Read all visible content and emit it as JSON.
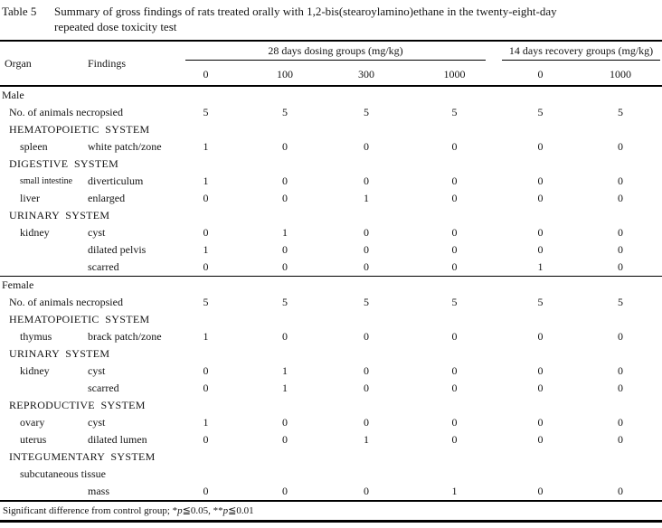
{
  "title": {
    "label": "Table 5",
    "line1": "Summary of gross findings of rats treated orally with 1,2-bis(stearoylamino)ethane in the twenty-eight-day",
    "line2": "repeated dose toxicity test"
  },
  "header": {
    "organ": "Organ",
    "findings": "Findings",
    "group1": "28 days dosing groups (mg/kg)",
    "group1_doses": [
      "0",
      "100",
      "300",
      "1000"
    ],
    "group2": "14 days recovery groups (mg/kg)",
    "group2_doses": [
      "0",
      "1000"
    ]
  },
  "sections": [
    {
      "sex": "Male",
      "rows": [
        {
          "type": "necropsy",
          "label": "No. of animals necropsied",
          "values": [
            "5",
            "5",
            "5",
            "5",
            "5",
            "5"
          ]
        },
        {
          "type": "system",
          "label": "HEMATOPOIETIC  SYSTEM"
        },
        {
          "type": "finding",
          "organ": "spleen",
          "finding": "white patch/zone",
          "values": [
            "1",
            "0",
            "0",
            "0",
            "0",
            "0"
          ]
        },
        {
          "type": "system",
          "label": "DIGESTIVE  SYSTEM"
        },
        {
          "type": "finding",
          "organ": "small intestine",
          "small": true,
          "finding": "diverticulum",
          "values": [
            "1",
            "0",
            "0",
            "0",
            "0",
            "0"
          ]
        },
        {
          "type": "finding",
          "organ": "liver",
          "finding": "enlarged",
          "values": [
            "0",
            "0",
            "1",
            "0",
            "0",
            "0"
          ]
        },
        {
          "type": "system",
          "label": "URINARY  SYSTEM"
        },
        {
          "type": "finding",
          "organ": "kidney",
          "finding": "cyst",
          "values": [
            "0",
            "1",
            "0",
            "0",
            "0",
            "0"
          ]
        },
        {
          "type": "finding",
          "organ": "",
          "finding": "dilated pelvis",
          "values": [
            "1",
            "0",
            "0",
            "0",
            "0",
            "0"
          ]
        },
        {
          "type": "finding",
          "organ": "",
          "finding": "scarred",
          "values": [
            "0",
            "0",
            "0",
            "0",
            "1",
            "0"
          ]
        }
      ]
    },
    {
      "sex": "Female",
      "rows": [
        {
          "type": "necropsy",
          "label": "No. of animals necropsied",
          "values": [
            "5",
            "5",
            "5",
            "5",
            "5",
            "5"
          ]
        },
        {
          "type": "system",
          "label": "HEMATOPOIETIC  SYSTEM"
        },
        {
          "type": "finding",
          "organ": "thymus",
          "finding": "brack patch/zone",
          "values": [
            "1",
            "0",
            "0",
            "0",
            "0",
            "0"
          ]
        },
        {
          "type": "system",
          "label": "URINARY  SYSTEM"
        },
        {
          "type": "finding",
          "organ": "kidney",
          "finding": "cyst",
          "values": [
            "0",
            "1",
            "0",
            "0",
            "0",
            "0"
          ]
        },
        {
          "type": "finding",
          "organ": "",
          "finding": "scarred",
          "values": [
            "0",
            "1",
            "0",
            "0",
            "0",
            "0"
          ]
        },
        {
          "type": "system",
          "label": "REPRODUCTIVE  SYSTEM"
        },
        {
          "type": "finding",
          "organ": "ovary",
          "finding": "cyst",
          "values": [
            "1",
            "0",
            "0",
            "0",
            "0",
            "0"
          ]
        },
        {
          "type": "finding",
          "organ": "uterus",
          "finding": "dilated lumen",
          "values": [
            "0",
            "0",
            "1",
            "0",
            "0",
            "0"
          ]
        },
        {
          "type": "system",
          "label": "INTEGUMENTARY  SYSTEM"
        },
        {
          "type": "organ_span",
          "label": "subcutaneous tissue"
        },
        {
          "type": "finding",
          "organ": "",
          "finding": "mass",
          "values": [
            "0",
            "0",
            "0",
            "1",
            "0",
            "0"
          ]
        }
      ]
    }
  ],
  "footnote": {
    "prefix": "Significant difference from control group; ",
    "star1": "*",
    "p1": "p",
    "rest1": "≦0.05, ",
    "star2": "**",
    "p2": "p",
    "rest2": "≦0.01"
  }
}
